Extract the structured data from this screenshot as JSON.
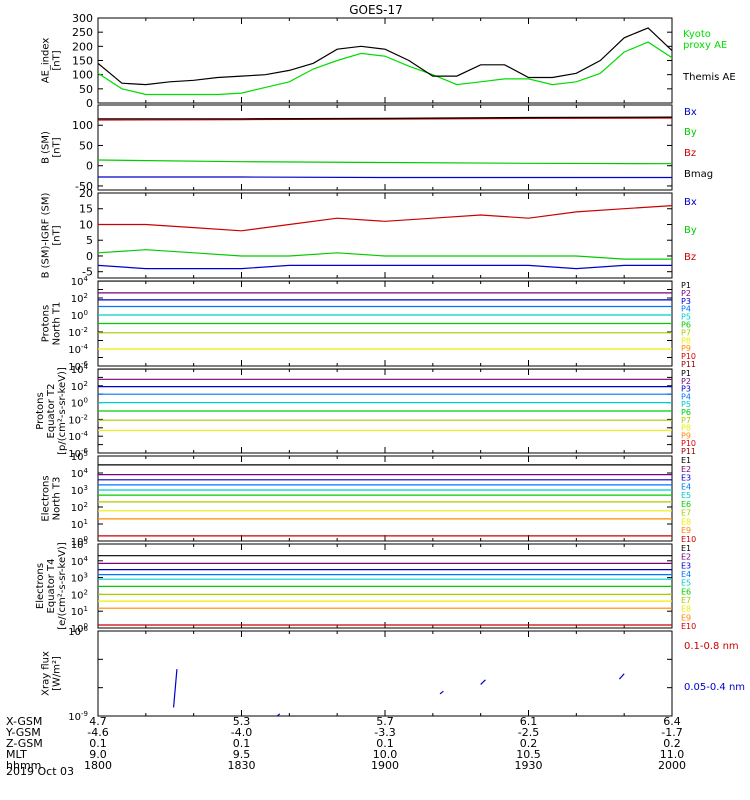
{
  "title": "GOES-17",
  "date_label": "2019 Oct 03",
  "axis_rows": {
    "labels": [
      "X-GSM",
      "Y-GSM",
      "Z-GSM",
      "MLT",
      "hhmm"
    ],
    "values": [
      [
        "4.7",
        "5.3",
        "5.7",
        "6.1",
        "6.4"
      ],
      [
        "-4.6",
        "-4.0",
        "-3.3",
        "-2.5",
        "-1.7"
      ],
      [
        "0.1",
        "0.1",
        "0.1",
        "0.2",
        "0.2"
      ],
      [
        "9.0",
        "9.5",
        "10.0",
        "10.5",
        "11.0"
      ],
      [
        "1800",
        "1830",
        "1900",
        "1930",
        "2000"
      ]
    ]
  },
  "chart_data": [
    {
      "type": "line",
      "ylabel": "AE_index [nT]",
      "ylim": [
        0,
        300
      ],
      "yticks": [
        "0",
        "50",
        "100",
        "150",
        "200",
        "250",
        "300"
      ],
      "x": [
        1800,
        1805,
        1810,
        1815,
        1820,
        1825,
        1830,
        1835,
        1840,
        1845,
        1850,
        1855,
        1900,
        1905,
        1910,
        1915,
        1920,
        1925,
        1930,
        1935,
        1940,
        1945,
        1950,
        1955,
        2000
      ],
      "series": [
        {
          "name": "Kyoto proxy AE",
          "color": "#00dd00",
          "values": [
            105,
            50,
            30,
            30,
            30,
            30,
            35,
            55,
            75,
            120,
            150,
            175,
            165,
            130,
            100,
            65,
            75,
            85,
            85,
            65,
            75,
            105,
            180,
            215,
            160
          ]
        },
        {
          "name": "Themis AE",
          "color": "#000000",
          "values": [
            140,
            70,
            65,
            75,
            80,
            90,
            95,
            100,
            115,
            140,
            190,
            200,
            190,
            150,
            95,
            95,
            135,
            135,
            90,
            90,
            105,
            150,
            230,
            265,
            185
          ]
        }
      ],
      "legend_names": [
        "Kyoto",
        "proxy AE",
        "Themis AE"
      ]
    },
    {
      "type": "line",
      "ylabel": "B (SM) [nT]",
      "ylim": [
        -60,
        150
      ],
      "yticks": [
        "-50",
        "0",
        "50",
        "100"
      ],
      "x": [
        1800,
        1830,
        1900,
        1930,
        2000
      ],
      "series": [
        {
          "name": "Bx",
          "color": "#0000cc",
          "values": [
            -28,
            -28,
            -29,
            -29,
            -29
          ]
        },
        {
          "name": "By",
          "color": "#00cc00",
          "values": [
            14,
            10,
            8,
            6,
            5
          ]
        },
        {
          "name": "Bz",
          "color": "#cc0000",
          "values": [
            113,
            114,
            115,
            117,
            118
          ]
        },
        {
          "name": "Bmag",
          "color": "#000000",
          "values": [
            116,
            116,
            117,
            119,
            120
          ]
        }
      ]
    },
    {
      "type": "line",
      "ylabel": "B (SM)-IGRF (SM) [nT]",
      "ylim": [
        -7,
        20
      ],
      "yticks": [
        "-5",
        "0",
        "5",
        "10",
        "15",
        "20"
      ],
      "x": [
        1800,
        1810,
        1820,
        1830,
        1840,
        1850,
        1900,
        1910,
        1920,
        1930,
        1940,
        1950,
        2000
      ],
      "series": [
        {
          "name": "Bx",
          "color": "#0000cc",
          "values": [
            -3,
            -4,
            -4,
            -4,
            -3,
            -3,
            -3,
            -3,
            -3,
            -3,
            -4,
            -3,
            -3
          ]
        },
        {
          "name": "By",
          "color": "#00cc00",
          "values": [
            1,
            2,
            1,
            0,
            0,
            1,
            0,
            0,
            0,
            0,
            0,
            -1,
            -1
          ]
        },
        {
          "name": "Bz",
          "color": "#cc0000",
          "values": [
            10,
            10,
            9,
            8,
            10,
            12,
            11,
            12,
            13,
            12,
            14,
            15,
            16
          ]
        }
      ]
    },
    {
      "type": "line",
      "ylabel": "Protons North T1",
      "scale": "log",
      "ylim_exp": [
        -6,
        4
      ],
      "x": [
        1800,
        2000
      ],
      "series": [
        {
          "name": "P1",
          "color": "#000000",
          "values": [
            10000,
            10000
          ]
        },
        {
          "name": "P2",
          "color": "#7a007a",
          "values": [
            400,
            400
          ]
        },
        {
          "name": "P3",
          "color": "#0000cc",
          "values": [
            60,
            60
          ]
        },
        {
          "name": "P4",
          "color": "#0077ff",
          "values": [
            10,
            10
          ]
        },
        {
          "name": "P5",
          "color": "#00cccc",
          "values": [
            1,
            1
          ]
        },
        {
          "name": "P6",
          "color": "#00cc00",
          "values": [
            0.1,
            0.1
          ]
        },
        {
          "name": "P7",
          "color": "#aacc00",
          "values": [
            0.008,
            0.008
          ]
        },
        {
          "name": "P8",
          "color": "#eeee00",
          "values": [
            0.0001,
            0.0001
          ]
        },
        {
          "name": "P9",
          "color": "#ff8800",
          "values": [
            null,
            null
          ]
        },
        {
          "name": "P10",
          "color": "#dd0000",
          "values": [
            null,
            null
          ]
        },
        {
          "name": "P11",
          "color": "#990000",
          "values": [
            null,
            null
          ]
        }
      ]
    },
    {
      "type": "line",
      "ylabel": "Protons Equator T2 [p/(cm²-s-sr-keV)]",
      "scale": "log",
      "ylim_exp": [
        -6,
        4
      ],
      "x": [
        1800,
        2000
      ],
      "series": [
        {
          "name": "P1",
          "color": "#000000",
          "values": [
            10000,
            10000
          ]
        },
        {
          "name": "P2",
          "color": "#7a007a",
          "values": [
            600,
            600
          ]
        },
        {
          "name": "P3",
          "color": "#0000cc",
          "values": [
            80,
            80
          ]
        },
        {
          "name": "P4",
          "color": "#0077ff",
          "values": [
            10,
            10
          ]
        },
        {
          "name": "P5",
          "color": "#00cccc",
          "values": [
            1,
            1
          ]
        },
        {
          "name": "P6",
          "color": "#00cc00",
          "values": [
            0.1,
            0.1
          ]
        },
        {
          "name": "P7",
          "color": "#aacc00",
          "values": [
            0.008,
            0.008
          ]
        },
        {
          "name": "P8",
          "color": "#eeee00",
          "values": [
            0.0005,
            0.0005
          ]
        },
        {
          "name": "P9",
          "color": "#ff8800",
          "values": [
            null,
            null
          ]
        },
        {
          "name": "P10",
          "color": "#dd0000",
          "values": [
            null,
            null
          ]
        },
        {
          "name": "P11",
          "color": "#990000",
          "values": [
            null,
            null
          ]
        }
      ]
    },
    {
      "type": "line",
      "ylabel": "Electrons North T3",
      "scale": "log",
      "ylim_exp": [
        0,
        5
      ],
      "x": [
        1800,
        2000
      ],
      "series": [
        {
          "name": "E1",
          "color": "#000000",
          "values": [
            30000,
            30000
          ]
        },
        {
          "name": "E2",
          "color": "#7a007a",
          "values": [
            8000,
            8000
          ]
        },
        {
          "name": "E3",
          "color": "#0000cc",
          "values": [
            4000,
            4000
          ]
        },
        {
          "name": "E4",
          "color": "#0077ff",
          "values": [
            2000,
            2000
          ]
        },
        {
          "name": "E5",
          "color": "#00cccc",
          "values": [
            1000,
            1000
          ]
        },
        {
          "name": "E6",
          "color": "#00cc00",
          "values": [
            500,
            500
          ]
        },
        {
          "name": "E7",
          "color": "#aacc00",
          "values": [
            200,
            200
          ]
        },
        {
          "name": "E8",
          "color": "#eeee00",
          "values": [
            60,
            60
          ]
        },
        {
          "name": "E9",
          "color": "#ff8800",
          "values": [
            20,
            20
          ]
        },
        {
          "name": "E10",
          "color": "#cc0000",
          "values": [
            2,
            2
          ]
        }
      ]
    },
    {
      "type": "line",
      "ylabel": "Electrons Equator T4 [e/(cm²-s-sr-keV)]",
      "scale": "log",
      "ylim_exp": [
        0,
        5
      ],
      "x": [
        1800,
        2000
      ],
      "series": [
        {
          "name": "E1",
          "color": "#000000",
          "values": [
            20000,
            20000
          ]
        },
        {
          "name": "E2",
          "color": "#7a007a",
          "values": [
            7000,
            7000
          ]
        },
        {
          "name": "E3",
          "color": "#0000cc",
          "values": [
            3000,
            3000
          ]
        },
        {
          "name": "E4",
          "color": "#0077ff",
          "values": [
            1500,
            1500
          ]
        },
        {
          "name": "E5",
          "color": "#00cccc",
          "values": [
            800,
            800
          ]
        },
        {
          "name": "E6",
          "color": "#00cc00",
          "values": [
            300,
            300
          ]
        },
        {
          "name": "E7",
          "color": "#aacc00",
          "values": [
            100,
            100
          ]
        },
        {
          "name": "E8",
          "color": "#eeee00",
          "values": [
            40,
            40
          ]
        },
        {
          "name": "E9",
          "color": "#ff8800",
          "values": [
            15,
            15
          ]
        },
        {
          "name": "E10",
          "color": "#cc0000",
          "values": [
            1.5,
            1.5
          ]
        }
      ]
    },
    {
      "type": "line",
      "ylabel": "Xray flux [W/m²]",
      "scale": "log",
      "ylim_exp": [
        -9,
        -6
      ],
      "series": [
        {
          "name": "0.1-0.8 nm",
          "color": "#cc0000",
          "values": []
        },
        {
          "name": "0.05-0.4 nm",
          "color": "#0000cc",
          "segments": [
            {
              "x": [
                1815.8,
                1816.5
              ],
              "y": [
                2e-09,
                4.5e-08
              ]
            },
            {
              "x": [
                1837.5,
                1838.0
              ],
              "y": [
                1e-09,
                1.2e-09
              ]
            },
            {
              "x": [
                1911.5,
                1912.2
              ],
              "y": [
                6e-09,
                7.5e-09
              ]
            },
            {
              "x": [
                1920.0,
                1921.0
              ],
              "y": [
                1.3e-08,
                1.9e-08
              ]
            },
            {
              "x": [
                1949.0,
                1950.0
              ],
              "y": [
                2e-08,
                3.1e-08
              ]
            }
          ]
        }
      ]
    }
  ]
}
